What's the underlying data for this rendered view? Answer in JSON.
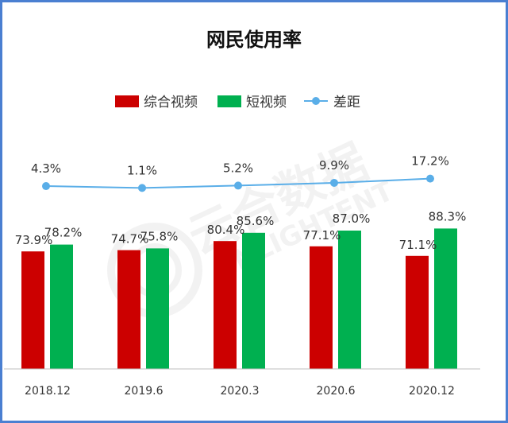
{
  "chart_data": {
    "type": "bar",
    "title": "网民使用率",
    "categories": [
      "2018.12",
      "2019.6",
      "2020.3",
      "2020.6",
      "2020.12"
    ],
    "series": [
      {
        "name": "综合视频",
        "type": "bar",
        "color": "#cc0000",
        "values": [
          73.9,
          74.7,
          80.4,
          77.1,
          71.1
        ]
      },
      {
        "name": "短视频",
        "type": "bar",
        "color": "#00b050",
        "values": [
          78.2,
          75.8,
          85.6,
          87.0,
          88.3
        ]
      },
      {
        "name": "差距",
        "type": "line",
        "color": "#5aaee8",
        "values": [
          4.3,
          1.1,
          5.2,
          9.9,
          17.2
        ]
      }
    ],
    "value_suffix": "%",
    "legend_position": "top",
    "grid": false
  }
}
